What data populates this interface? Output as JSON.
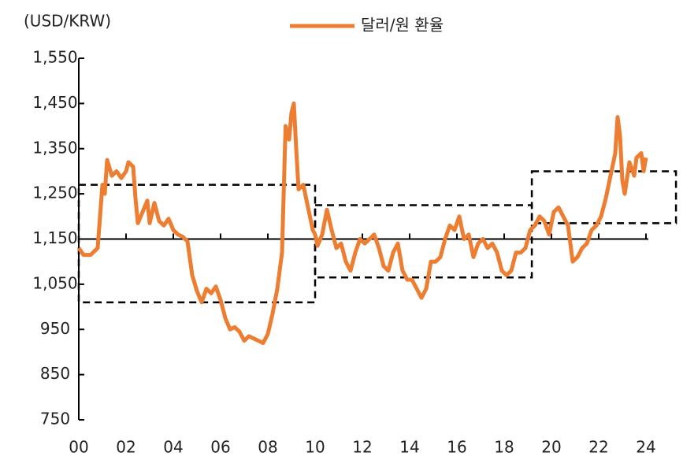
{
  "chart_data": {
    "type": "line",
    "y_axis_label": "(USD/KRW)",
    "x": [
      0,
      0.2,
      0.5,
      0.8,
      1.0,
      1.1,
      1.2,
      1.4,
      1.6,
      1.8,
      2.0,
      2.1,
      2.3,
      2.4,
      2.5,
      2.7,
      2.9,
      3.0,
      3.2,
      3.4,
      3.6,
      3.8,
      4.0,
      4.2,
      4.4,
      4.6,
      4.8,
      5.0,
      5.2,
      5.4,
      5.6,
      5.8,
      6.0,
      6.2,
      6.4,
      6.6,
      6.8,
      7.0,
      7.2,
      7.4,
      7.6,
      7.8,
      8.0,
      8.2,
      8.4,
      8.6,
      8.75,
      8.9,
      9.0,
      9.1,
      9.2,
      9.3,
      9.5,
      9.7,
      9.9,
      10.0,
      10.1,
      10.3,
      10.5,
      10.7,
      10.9,
      11.1,
      11.3,
      11.5,
      11.7,
      11.9,
      12.1,
      12.3,
      12.5,
      12.7,
      12.9,
      13.1,
      13.3,
      13.5,
      13.7,
      13.9,
      14.1,
      14.3,
      14.5,
      14.7,
      14.9,
      15.1,
      15.3,
      15.5,
      15.7,
      15.9,
      16.1,
      16.3,
      16.5,
      16.7,
      16.9,
      17.1,
      17.3,
      17.5,
      17.7,
      17.9,
      18.1,
      18.3,
      18.5,
      18.7,
      18.9,
      19.1,
      19.3,
      19.5,
      19.7,
      19.9,
      20.1,
      20.3,
      20.5,
      20.7,
      20.9,
      21.1,
      21.3,
      21.5,
      21.7,
      21.9,
      22.1,
      22.3,
      22.5,
      22.7,
      22.8,
      22.9,
      23.0,
      23.1,
      23.3,
      23.5,
      23.6,
      23.8,
      23.9,
      24.0
    ],
    "series": [
      {
        "name": "달러/원 환율",
        "color": "#ed7d31",
        "values": [
          1130,
          1115,
          1115,
          1130,
          1270,
          1250,
          1325,
          1290,
          1300,
          1285,
          1300,
          1320,
          1310,
          1240,
          1185,
          1210,
          1235,
          1185,
          1230,
          1190,
          1180,
          1195,
          1170,
          1160,
          1155,
          1145,
          1070,
          1035,
          1010,
          1040,
          1030,
          1045,
          1015,
          975,
          950,
          955,
          945,
          925,
          935,
          930,
          925,
          920,
          940,
          985,
          1040,
          1120,
          1400,
          1370,
          1430,
          1450,
          1350,
          1260,
          1270,
          1220,
          1170,
          1160,
          1135,
          1160,
          1215,
          1170,
          1130,
          1140,
          1100,
          1080,
          1120,
          1150,
          1140,
          1150,
          1160,
          1130,
          1090,
          1080,
          1120,
          1140,
          1080,
          1060,
          1060,
          1040,
          1020,
          1040,
          1100,
          1100,
          1110,
          1150,
          1180,
          1170,
          1200,
          1150,
          1160,
          1110,
          1140,
          1150,
          1130,
          1140,
          1120,
          1080,
          1070,
          1080,
          1120,
          1120,
          1130,
          1170,
          1180,
          1200,
          1190,
          1160,
          1210,
          1220,
          1200,
          1180,
          1100,
          1110,
          1130,
          1140,
          1170,
          1180,
          1200,
          1240,
          1290,
          1340,
          1420,
          1380,
          1280,
          1250,
          1320,
          1290,
          1330,
          1340,
          1300,
          1330
        ]
      }
    ],
    "xlim": [
      0,
      24
    ],
    "xticks": [
      {
        "value": 0,
        "label": "00"
      },
      {
        "value": 2,
        "label": "02"
      },
      {
        "value": 4,
        "label": "04"
      },
      {
        "value": 6,
        "label": "06"
      },
      {
        "value": 8,
        "label": "08"
      },
      {
        "value": 10,
        "label": "10"
      },
      {
        "value": 12,
        "label": "12"
      },
      {
        "value": 14,
        "label": "14"
      },
      {
        "value": 16,
        "label": "16"
      },
      {
        "value": 18,
        "label": "18"
      },
      {
        "value": 20,
        "label": "20"
      },
      {
        "value": 22,
        "label": "22"
      },
      {
        "value": 24,
        "label": "24"
      }
    ],
    "ylim": [
      750,
      1550
    ],
    "yticks": [
      750,
      850,
      950,
      {
        "value": 1050,
        "label": "1,050"
      },
      {
        "value": 1150,
        "label": "1,150"
      },
      {
        "value": 1250,
        "label": "1,250"
      },
      {
        "value": 1350,
        "label": "1,350"
      },
      {
        "value": 1450,
        "label": "1,450"
      },
      {
        "value": 1550,
        "label": "1,550"
      }
    ],
    "x_axis_crosses_at": 1150,
    "legend": "top",
    "highlight_boxes": [
      {
        "x": [
          0,
          10
        ],
        "y": [
          1010,
          1270
        ]
      },
      {
        "x": [
          10,
          19.17
        ],
        "y": [
          1065,
          1225
        ]
      },
      {
        "x": [
          19.17,
          25.27
        ],
        "y": [
          1185,
          1300
        ]
      }
    ]
  }
}
